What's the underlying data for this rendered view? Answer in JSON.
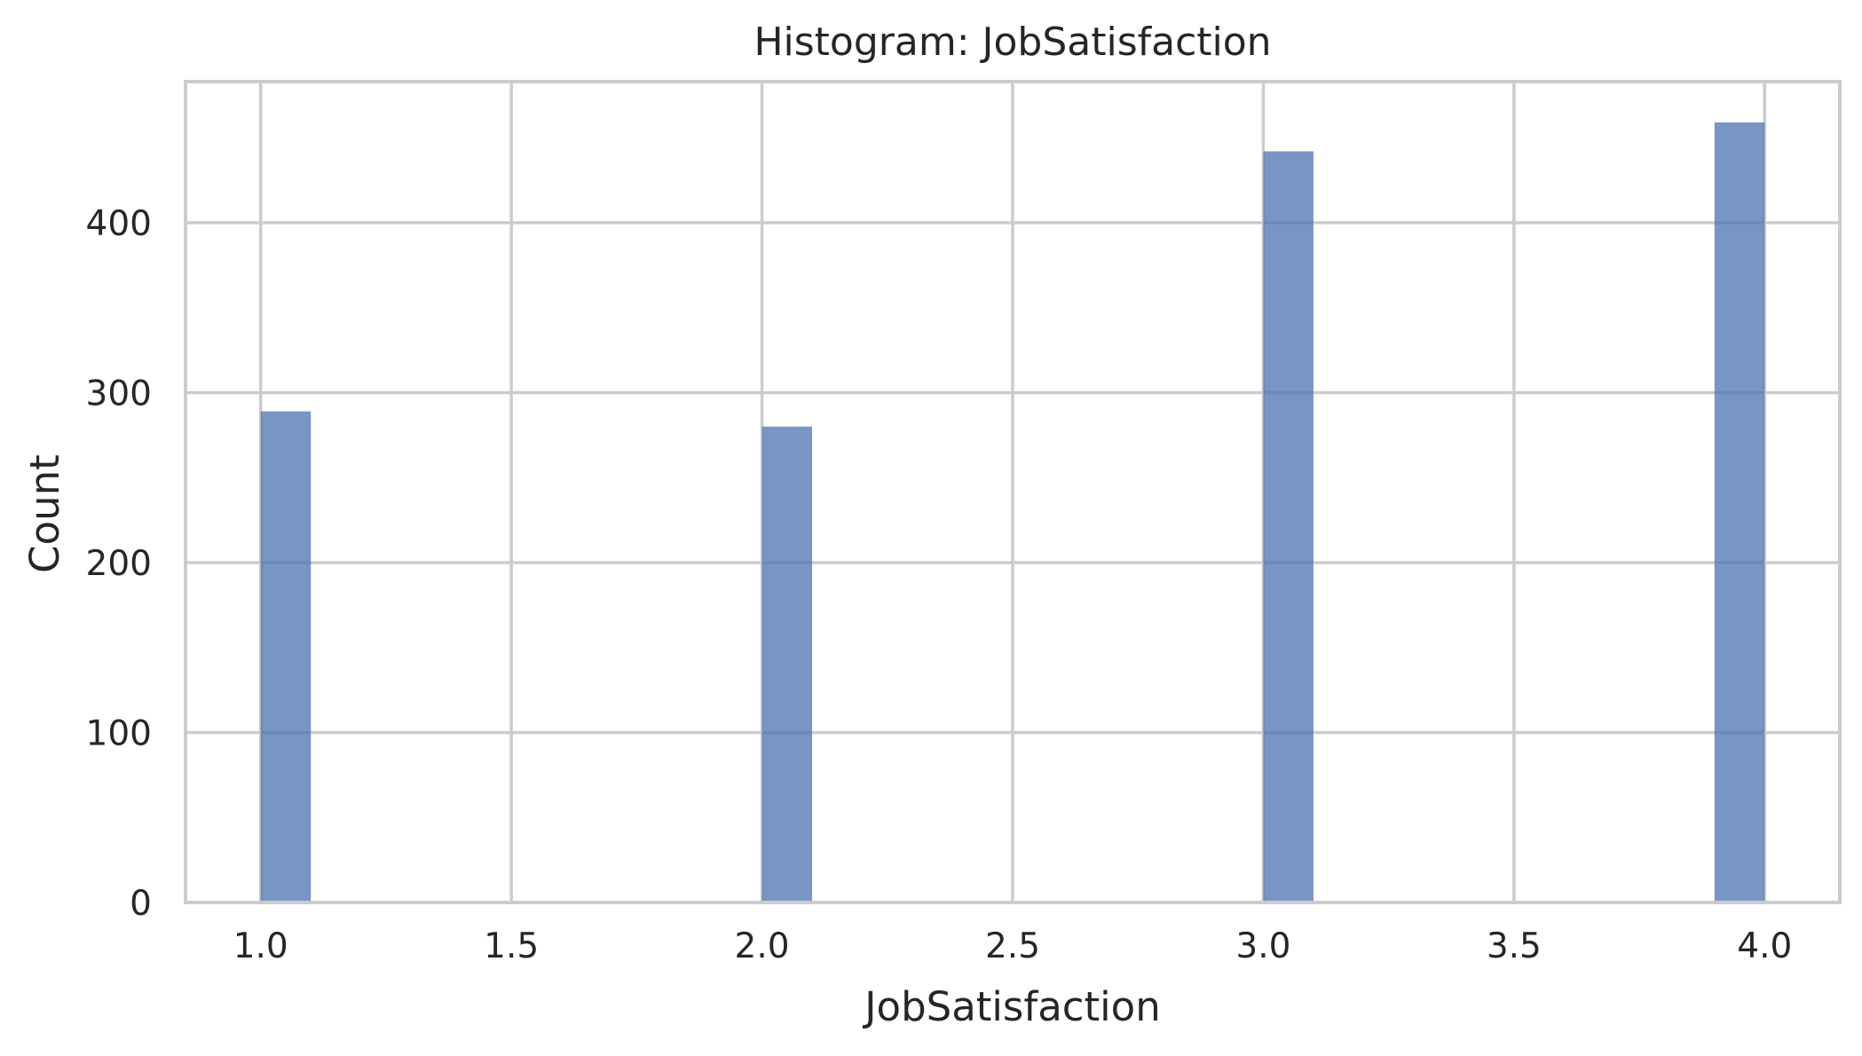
{
  "chart_data": {
    "type": "bar",
    "title": "Histogram: JobSatisfaction",
    "xlabel": "JobSatisfaction",
    "ylabel": "Count",
    "xlim": [
      0.85,
      4.15
    ],
    "ylim": [
      0,
      483
    ],
    "xticks": [
      "1.0",
      "1.5",
      "2.0",
      "2.5",
      "3.0",
      "3.5",
      "4.0"
    ],
    "xtick_values": [
      1.0,
      1.5,
      2.0,
      2.5,
      3.0,
      3.5,
      4.0
    ],
    "yticks": [
      "0",
      "100",
      "200",
      "300",
      "400"
    ],
    "ytick_values": [
      0,
      100,
      200,
      300,
      400
    ],
    "bins": [
      {
        "x_start": 1.0,
        "x_end": 1.1,
        "count": 289
      },
      {
        "x_start": 2.0,
        "x_end": 2.1,
        "count": 280
      },
      {
        "x_start": 3.0,
        "x_end": 3.1,
        "count": 442
      },
      {
        "x_start": 3.9,
        "x_end": 4.0,
        "count": 459
      }
    ],
    "bar_color": "#4c72b0",
    "grid": true,
    "legend": "none"
  }
}
